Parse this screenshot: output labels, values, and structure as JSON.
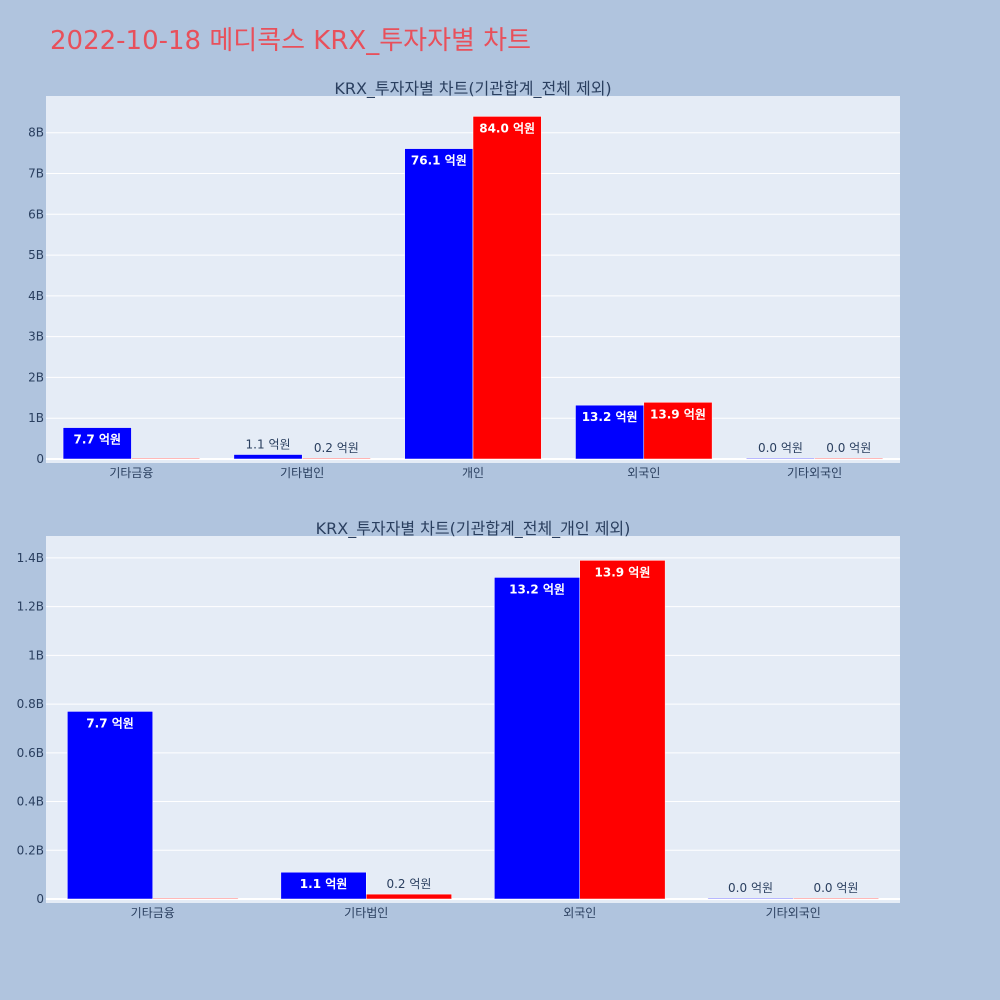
{
  "page": {
    "title": "2022-10-18 메디콕스 KRX_투자자별 차트",
    "title_color": "#e8505b",
    "background": "#b0c4de",
    "plot_background": "#e5ecf6"
  },
  "chart_data": [
    {
      "type": "bar",
      "title": "KRX_투자자별 차트(기관합계_전체 제외)",
      "categories": [
        "기타금융",
        "기타법인",
        "개인",
        "외국인",
        "기타외국인"
      ],
      "series": [
        {
          "color": "#0000ff",
          "values": [
            770000000,
            110000000,
            7610000000,
            1320000000,
            0
          ],
          "labels": [
            "7.7 억원",
            "1.1 억원",
            "76.1 억원",
            "13.2 억원",
            "0.0 억원"
          ]
        },
        {
          "color": "#ff0000",
          "values": [
            0,
            20000000,
            8400000000,
            1390000000,
            0
          ],
          "labels": [
            "",
            "0.2 억원",
            "84.0 억원",
            "13.9 억원",
            "0.0 억원"
          ]
        }
      ],
      "ylim": [
        0,
        8900000000
      ],
      "yticks": [
        0,
        1000000000,
        2000000000,
        3000000000,
        4000000000,
        5000000000,
        6000000000,
        7000000000,
        8000000000
      ],
      "ytick_labels": [
        "0",
        "1B",
        "2B",
        "3B",
        "4B",
        "5B",
        "6B",
        "7B",
        "8B"
      ],
      "grid": true
    },
    {
      "type": "bar",
      "title": "KRX_투자자별 차트(기관합계_전체_개인 제외)",
      "categories": [
        "기타금융",
        "기타법인",
        "외국인",
        "기타외국인"
      ],
      "series": [
        {
          "color": "#0000ff",
          "values": [
            770000000,
            110000000,
            1320000000,
            0
          ],
          "labels": [
            "7.7 억원",
            "1.1 억원",
            "13.2 억원",
            "0.0 억원"
          ]
        },
        {
          "color": "#ff0000",
          "values": [
            0,
            20000000,
            1390000000,
            0
          ],
          "labels": [
            "",
            "0.2 억원",
            "13.9 억원",
            "0.0 억원"
          ]
        }
      ],
      "ylim": [
        0,
        1490000000
      ],
      "yticks": [
        0,
        200000000,
        400000000,
        600000000,
        800000000,
        1000000000,
        1200000000,
        1400000000
      ],
      "ytick_labels": [
        "0",
        "0.2B",
        "0.4B",
        "0.6B",
        "0.8B",
        "1B",
        "1.2B",
        "1.4B"
      ],
      "grid": true
    }
  ]
}
